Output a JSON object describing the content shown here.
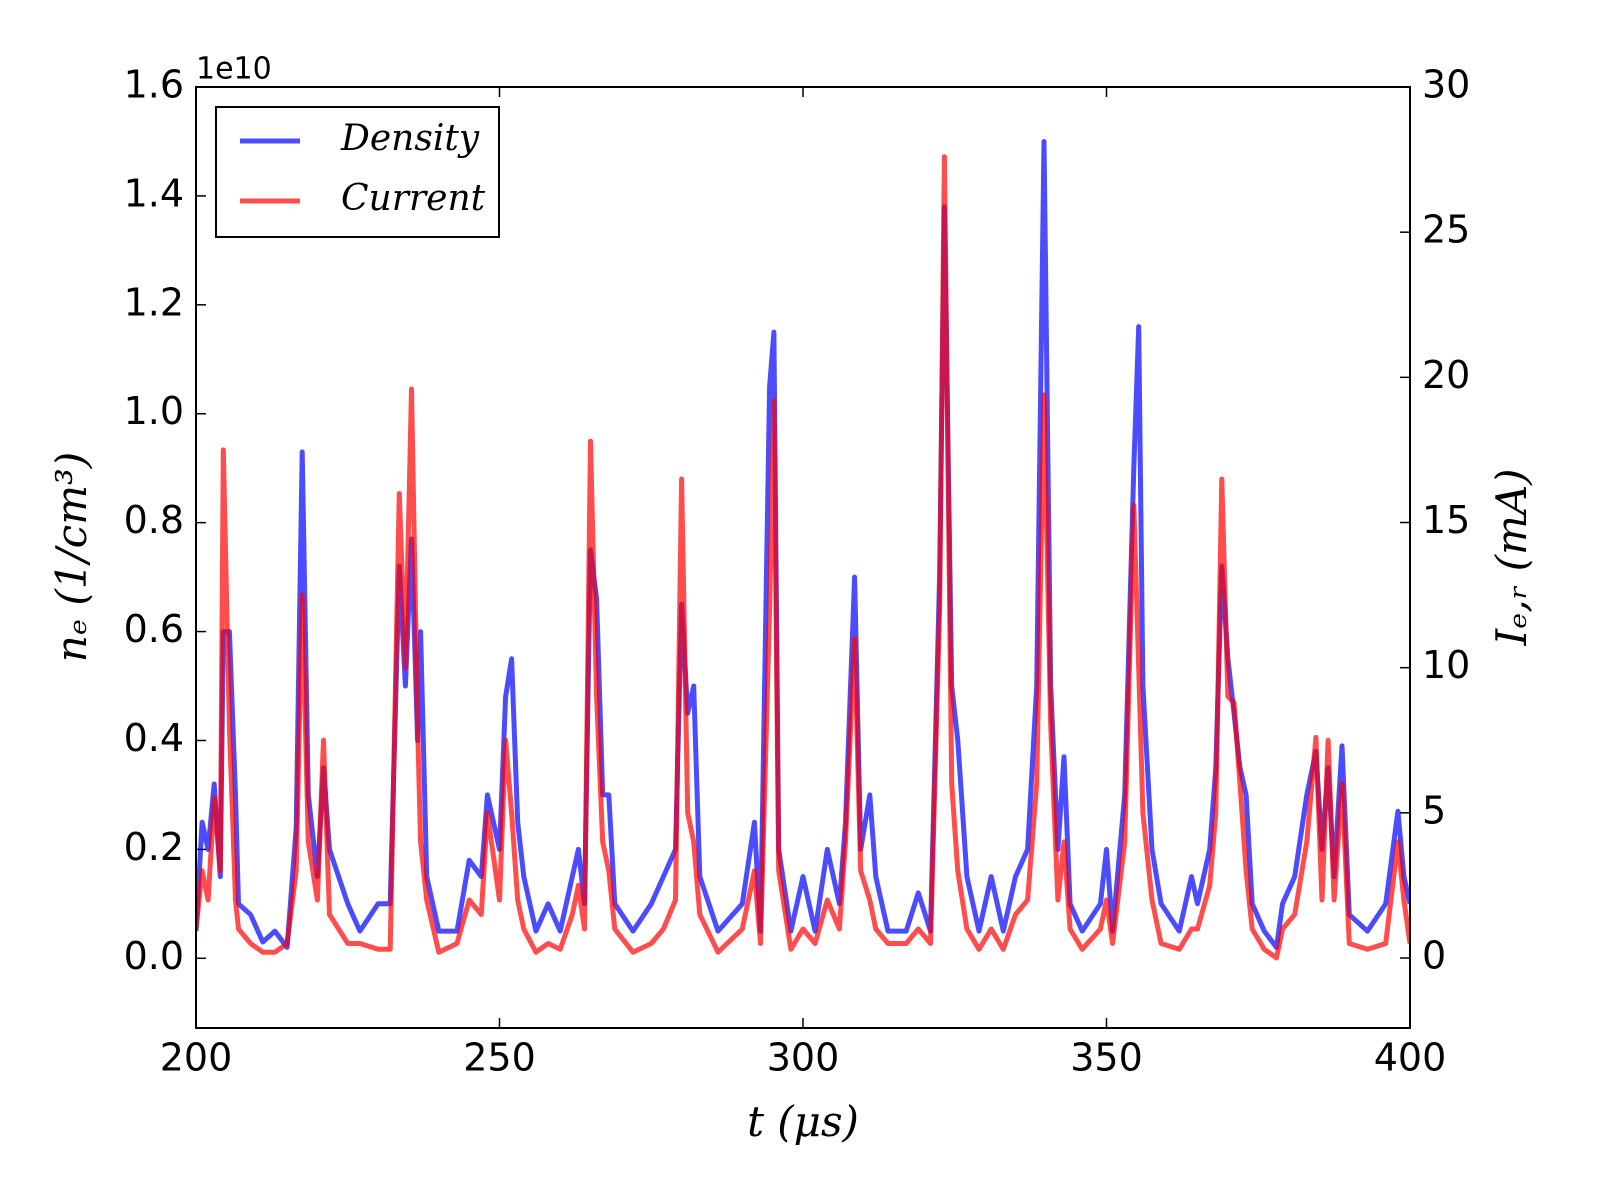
{
  "chart_data": {
    "type": "line",
    "xlabel": "t (μs)",
    "ylabel": "nₑ (1/cm³)",
    "y2label": "Iₑ,ᵣ (mA)",
    "y_offset_label": "1e10",
    "legend": "upper left",
    "xlim": [
      200,
      400
    ],
    "xticks": [
      200,
      250,
      300,
      350,
      400
    ],
    "ylim": [
      -0.128,
      1.6
    ],
    "yticks": [
      {
        "value": 0,
        "label": "0.0"
      },
      {
        "value": 0.2,
        "label": "0.2"
      },
      {
        "value": 0.4,
        "label": "0.4"
      },
      {
        "value": 0.6,
        "label": "0.6"
      },
      {
        "value": 0.8,
        "label": "0.8"
      },
      {
        "value": 1.0,
        "label": "1.0"
      },
      {
        "value": 1.2,
        "label": "1.2"
      },
      {
        "value": 1.4,
        "label": "1.4"
      },
      {
        "value": 1.6,
        "label": "1.6"
      }
    ],
    "y2lim": [
      -2.41,
      30
    ],
    "y2ticks": [
      0,
      5,
      10,
      15,
      20,
      25,
      30
    ],
    "x": [
      200,
      201,
      202,
      203,
      204,
      204.5,
      205.5,
      206.5,
      207,
      209,
      211,
      213,
      215,
      216.5,
      217.5,
      218.5,
      220,
      221,
      222,
      225,
      227,
      230,
      232,
      233.5,
      234.5,
      235.5,
      236.5,
      237,
      238,
      240,
      243,
      245,
      247,
      248,
      250,
      251,
      252,
      253,
      254,
      256,
      258,
      260,
      262,
      263,
      264,
      265,
      266,
      267,
      268,
      269,
      272,
      275,
      277,
      279,
      280,
      281,
      282,
      283,
      286,
      290,
      292,
      293,
      294.5,
      295.2,
      296,
      298,
      300,
      302,
      304,
      306,
      307,
      308.5,
      309.5,
      311,
      312,
      314,
      317,
      319,
      321,
      322.5,
      323.3,
      324.5,
      325.5,
      327,
      329,
      331,
      333,
      335,
      337,
      338.5,
      339.7,
      340.8,
      342,
      343,
      344,
      346,
      349,
      350,
      351,
      353,
      354.5,
      355.3,
      356,
      357.5,
      359,
      362,
      364,
      365,
      367,
      368,
      369,
      370,
      371,
      372,
      373,
      374,
      376,
      378,
      379,
      381,
      383,
      384.5,
      385.5,
      386.5,
      387.5,
      388.8,
      390,
      393,
      396,
      398,
      399,
      400
    ],
    "series": [
      {
        "name": "Density",
        "color": "#0000ff",
        "values": [
          0.05,
          0.25,
          0.2,
          0.32,
          0.15,
          0.6,
          0.6,
          0.3,
          0.1,
          0.08,
          0.03,
          0.05,
          0.02,
          0.24,
          0.93,
          0.3,
          0.15,
          0.35,
          0.2,
          0.1,
          0.05,
          0.1,
          0.1,
          0.72,
          0.5,
          0.77,
          0.4,
          0.6,
          0.15,
          0.05,
          0.05,
          0.18,
          0.15,
          0.3,
          0.2,
          0.48,
          0.55,
          0.25,
          0.15,
          0.05,
          0.1,
          0.05,
          0.15,
          0.2,
          0.1,
          0.75,
          0.66,
          0.3,
          0.3,
          0.1,
          0.05,
          0.1,
          0.15,
          0.2,
          0.65,
          0.45,
          0.5,
          0.15,
          0.05,
          0.1,
          0.25,
          0.05,
          1.05,
          1.15,
          0.2,
          0.05,
          0.15,
          0.05,
          0.2,
          0.1,
          0.25,
          0.7,
          0.2,
          0.3,
          0.15,
          0.05,
          0.05,
          0.12,
          0.05,
          0.7,
          1.38,
          0.5,
          0.4,
          0.15,
          0.05,
          0.15,
          0.05,
          0.15,
          0.2,
          0.5,
          1.5,
          0.5,
          0.2,
          0.37,
          0.1,
          0.05,
          0.1,
          0.2,
          0.05,
          0.3,
          0.9,
          1.16,
          0.5,
          0.2,
          0.1,
          0.05,
          0.15,
          0.1,
          0.2,
          0.35,
          0.72,
          0.55,
          0.45,
          0.35,
          0.3,
          0.1,
          0.05,
          0.02,
          0.1,
          0.15,
          0.3,
          0.38,
          0.2,
          0.35,
          0.15,
          0.39,
          0.08,
          0.05,
          0.1,
          0.27,
          0.15,
          0.1
        ]
      },
      {
        "name": "Current",
        "color": "#ff0000",
        "axis": "y2",
        "values": [
          1,
          3,
          2,
          5.5,
          3,
          17.5,
          8,
          2,
          1,
          0.5,
          0.2,
          0.2,
          0.5,
          3,
          12.5,
          4,
          2,
          7.5,
          1.5,
          0.5,
          0.5,
          0.3,
          0.3,
          16,
          10,
          19.6,
          8,
          4,
          2,
          0.2,
          0.5,
          2,
          1.5,
          5,
          2,
          7.5,
          5,
          2,
          1,
          0.2,
          0.5,
          0.3,
          1.5,
          2.5,
          1,
          17.8,
          9,
          4,
          3,
          1,
          0.2,
          0.5,
          1,
          2,
          16.5,
          5,
          4,
          1.5,
          0.2,
          1,
          3,
          0.5,
          12,
          19.2,
          3,
          0.3,
          1,
          0.5,
          2,
          1,
          4,
          11,
          3,
          2,
          1,
          0.5,
          0.5,
          1,
          0.5,
          12,
          27.6,
          6,
          3,
          1,
          0.3,
          1,
          0.3,
          1.5,
          2,
          6,
          19.4,
          8,
          2,
          4,
          1,
          0.3,
          1,
          2,
          0.5,
          4,
          15.6,
          10,
          5,
          2,
          0.5,
          0.3,
          1,
          1,
          2.5,
          5,
          16.5,
          9,
          8.8,
          6,
          3,
          1,
          0.3,
          0,
          1,
          1.5,
          4,
          7.6,
          2,
          7.5,
          2,
          6,
          0.5,
          0.3,
          0.5,
          4,
          2,
          0.5
        ]
      }
    ]
  }
}
